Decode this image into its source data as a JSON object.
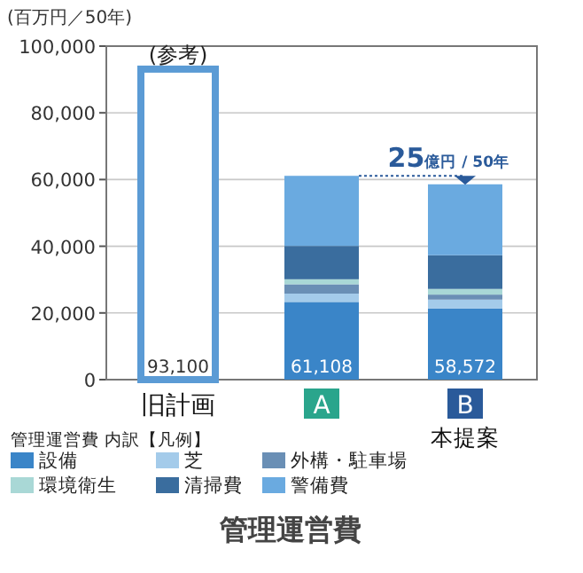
{
  "chart_data": {
    "type": "bar",
    "stacked": true,
    "title": "管理運営費",
    "ylabel": "(百万円／50年)",
    "legend_title": "管理運営費 内訳【凡例】",
    "legend": "bottom",
    "grid": "y",
    "categories": [
      "旧計画",
      "A",
      "B"
    ],
    "ylim": [
      0,
      100000
    ],
    "yticks": [
      {
        "value": 0,
        "label": "0"
      },
      {
        "value": 20000,
        "label": "20,000"
      },
      {
        "value": 40000,
        "label": "40,000"
      },
      {
        "value": 60000,
        "label": "60,000"
      },
      {
        "value": 80000,
        "label": "80,000"
      },
      {
        "value": 100000,
        "label": "100,000"
      }
    ],
    "series": [
      {
        "color": "#5b9bd5",
        "values": [
          93100,
          null,
          null
        ]
      },
      {
        "name": "設備",
        "color": "#3a85c8",
        "values": [
          null,
          23300,
          21300
        ]
      },
      {
        "name": "芝",
        "color": "#a4cbea",
        "values": [
          null,
          2500,
          2700
        ]
      },
      {
        "name": "外構・駐車場",
        "color": "#6a8fb5",
        "values": [
          null,
          2800,
          1500
        ]
      },
      {
        "name": "環境衛生",
        "color": "#a9d8d6",
        "values": [
          null,
          1500,
          1700
        ]
      },
      {
        "name": "清掃費",
        "color": "#3a6d9e",
        "values": [
          null,
          10000,
          10100
        ]
      },
      {
        "name": "警備費",
        "color": "#6aaae0",
        "values": [
          null,
          21008,
          21272
        ]
      }
    ],
    "totals": [
      "93,100",
      "61,108",
      "58,572"
    ],
    "annotations": [
      {
        "text": "(参考)",
        "x": "旧計画",
        "y": 93100
      },
      {
        "text": "25億円 / 50年",
        "x": "B",
        "y": 61108
      },
      "本提案"
    ]
  }
}
